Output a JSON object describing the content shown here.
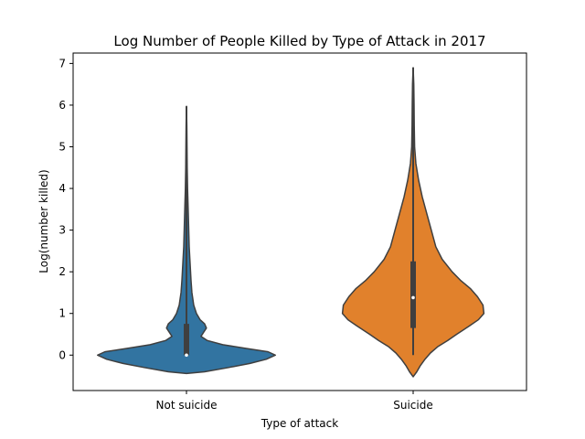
{
  "chart_data": {
    "type": "violin",
    "title": "Log Number of People Killed by Type of Attack in 2017",
    "xlabel": "Type of attack",
    "ylabel": "Log(number killed)",
    "ylim": [
      -0.85,
      7.25
    ],
    "yticks": [
      "0",
      "1",
      "2",
      "3",
      "4",
      "5",
      "6",
      "7"
    ],
    "categories": [
      "Not suicide",
      "Suicide"
    ],
    "grid": false,
    "violins": [
      {
        "category": "Not suicide",
        "color": "#3274a1",
        "whisker": [
          0,
          1.6
        ],
        "iqr": [
          0,
          0.75
        ],
        "median": 0,
        "max_value": 5.97,
        "density": [
          [
            -0.44,
            0.0
          ],
          [
            -0.4,
            0.2
          ],
          [
            -0.3,
            0.46
          ],
          [
            -0.2,
            0.7
          ],
          [
            -0.1,
            0.88
          ],
          [
            0.0,
            0.98
          ],
          [
            0.08,
            0.9
          ],
          [
            0.16,
            0.66
          ],
          [
            0.25,
            0.4
          ],
          [
            0.35,
            0.23
          ],
          [
            0.45,
            0.16
          ],
          [
            0.55,
            0.19
          ],
          [
            0.65,
            0.22
          ],
          [
            0.75,
            0.2
          ],
          [
            0.85,
            0.15
          ],
          [
            1.0,
            0.11
          ],
          [
            1.2,
            0.08
          ],
          [
            1.5,
            0.06
          ],
          [
            1.8,
            0.05
          ],
          [
            2.2,
            0.04
          ],
          [
            2.6,
            0.03
          ],
          [
            3.0,
            0.025
          ],
          [
            3.4,
            0.02
          ],
          [
            3.7,
            0.016
          ],
          [
            4.0,
            0.012
          ],
          [
            4.5,
            0.008
          ],
          [
            5.0,
            0.006
          ],
          [
            5.5,
            0.004
          ],
          [
            5.97,
            0.0
          ]
        ]
      },
      {
        "category": "Suicide",
        "color": "#e1812c",
        "whisker": [
          0,
          4.8
        ],
        "iqr": [
          0.65,
          2.25
        ],
        "median": 1.38,
        "max_value": 6.9,
        "density": [
          [
            -0.52,
            0.0
          ],
          [
            -0.4,
            0.04
          ],
          [
            -0.25,
            0.08
          ],
          [
            -0.1,
            0.13
          ],
          [
            0.05,
            0.19
          ],
          [
            0.2,
            0.27
          ],
          [
            0.35,
            0.38
          ],
          [
            0.5,
            0.48
          ],
          [
            0.7,
            0.62
          ],
          [
            0.85,
            0.72
          ],
          [
            1.0,
            0.78
          ],
          [
            1.2,
            0.77
          ],
          [
            1.4,
            0.71
          ],
          [
            1.6,
            0.63
          ],
          [
            1.8,
            0.52
          ],
          [
            2.0,
            0.43
          ],
          [
            2.3,
            0.32
          ],
          [
            2.6,
            0.25
          ],
          [
            3.0,
            0.2
          ],
          [
            3.4,
            0.15
          ],
          [
            3.8,
            0.1
          ],
          [
            4.2,
            0.06
          ],
          [
            4.6,
            0.03
          ],
          [
            5.0,
            0.016
          ],
          [
            5.5,
            0.012
          ],
          [
            6.0,
            0.01
          ],
          [
            6.5,
            0.007
          ],
          [
            6.9,
            0.0
          ]
        ]
      }
    ]
  }
}
